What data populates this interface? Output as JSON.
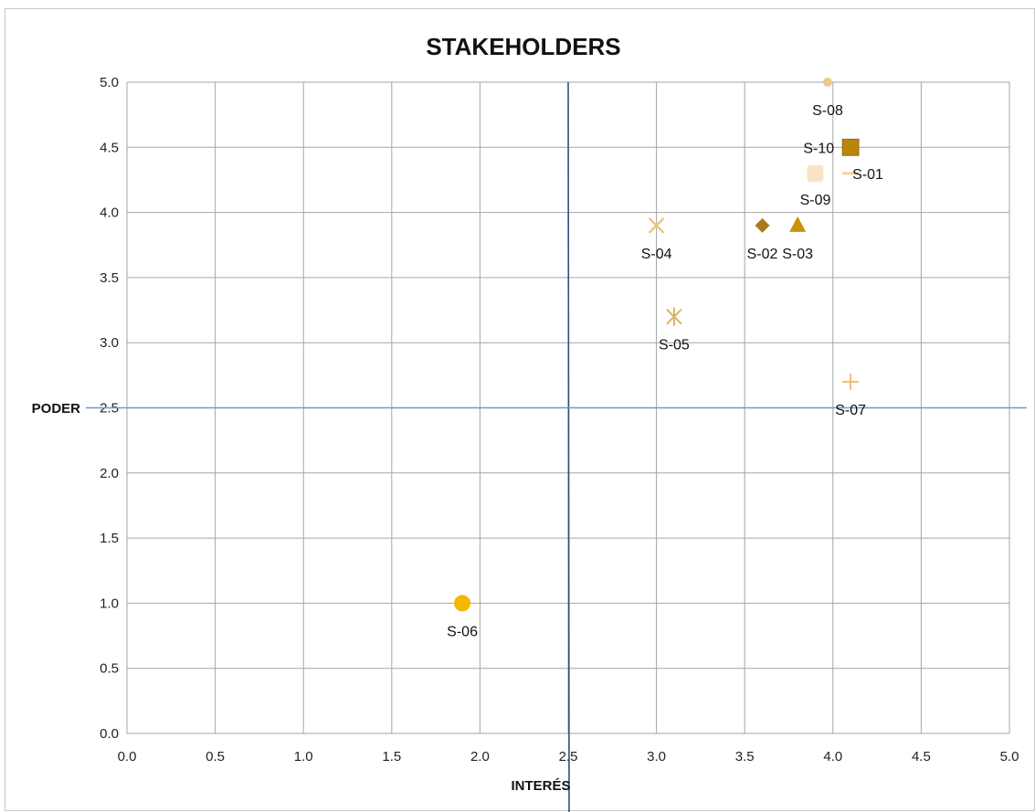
{
  "chart_data": {
    "type": "scatter",
    "title": "STAKEHOLDERS",
    "xlabel": "INTERÉS",
    "ylabel": "PODER",
    "xlim": [
      0,
      5
    ],
    "ylim": [
      0,
      5
    ],
    "x_ticks": [
      "0.0",
      "0.5",
      "1.0",
      "1.5",
      "2.0",
      "2.5",
      "3.0",
      "3.5",
      "4.0",
      "4.5",
      "5.0"
    ],
    "y_ticks": [
      "0.0",
      "0.5",
      "1.0",
      "1.5",
      "2.0",
      "2.5",
      "3.0",
      "3.5",
      "4.0",
      "4.5",
      "5.0"
    ],
    "grid": true,
    "quadrant_lines": {
      "x": 2.5,
      "y": 2.5
    },
    "colors": {
      "grid": "#a6a6a6",
      "vertical_divider": "#2f4f7f",
      "horizontal_divider": "#6a9acb"
    },
    "series": [
      {
        "name": "S-01",
        "x": 4.1,
        "y": 4.3,
        "marker": "dash",
        "color": "#f3d1a3",
        "label_position": "right"
      },
      {
        "name": "S-02",
        "x": 3.6,
        "y": 3.9,
        "marker": "diamond",
        "color": "#a87a1e",
        "label_position": "below"
      },
      {
        "name": "S-03",
        "x": 3.8,
        "y": 3.9,
        "marker": "triangle",
        "color": "#c9920a",
        "label_position": "below"
      },
      {
        "name": "S-04",
        "x": 3.0,
        "y": 3.9,
        "marker": "x",
        "color": "#e8c27a",
        "label_position": "below"
      },
      {
        "name": "S-05",
        "x": 3.1,
        "y": 3.2,
        "marker": "star",
        "color": "#d9b560",
        "label_position": "below"
      },
      {
        "name": "S-06",
        "x": 1.9,
        "y": 1.0,
        "marker": "circle",
        "color": "#f5b800",
        "label_position": "below"
      },
      {
        "name": "S-07",
        "x": 4.1,
        "y": 2.7,
        "marker": "plus",
        "color": "#f0b860",
        "label_position": "below"
      },
      {
        "name": "S-08",
        "x": 3.97,
        "y": 5.0,
        "marker": "circle-small",
        "color": "#f0c78a",
        "label_position": "below"
      },
      {
        "name": "S-09",
        "x": 3.9,
        "y": 4.3,
        "marker": "square-rounded",
        "color": "#f8e3c6",
        "label_position": "below"
      },
      {
        "name": "S-10",
        "x": 4.1,
        "y": 4.5,
        "marker": "square",
        "color": "#b8860b",
        "label_position": "left"
      }
    ]
  }
}
